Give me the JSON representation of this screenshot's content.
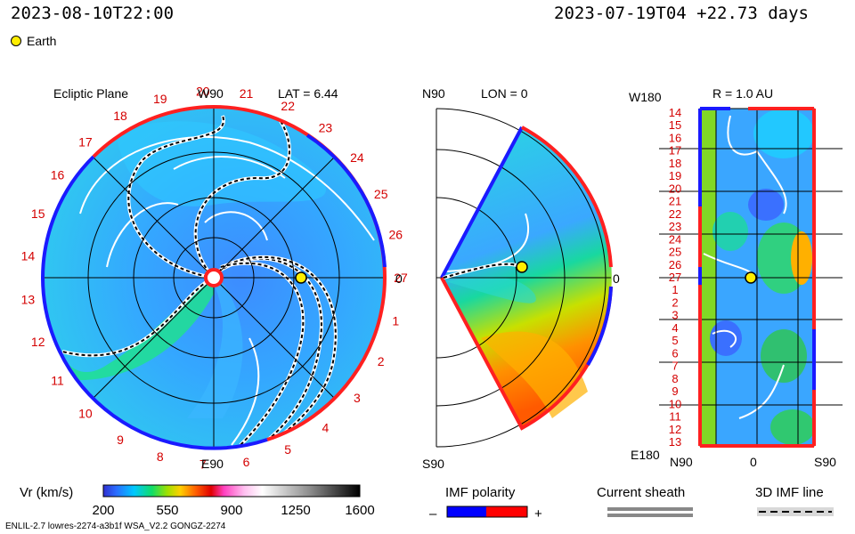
{
  "header": {
    "valid_time": "2023-08-10T22:00",
    "run_time": "2023-07-19T04 +22.73 days",
    "legend_label": "Earth",
    "legend_color": "#ffee00"
  },
  "panels": {
    "ecliptic": {
      "title": "Ecliptic Plane",
      "top_label": "W90",
      "lat_label": "LAT = 6.44",
      "bottom_label": "E90",
      "right_label": "0",
      "carrington_rotation_ticks": [
        "1",
        "2",
        "3",
        "4",
        "5",
        "6",
        "7",
        "8",
        "9",
        "10",
        "11",
        "12",
        "13",
        "14",
        "15",
        "16",
        "17",
        "18",
        "19",
        "20",
        "21",
        "22",
        "23",
        "24",
        "25",
        "26",
        "27"
      ]
    },
    "meridional": {
      "top_label": "N90",
      "lon_label": "LON = 0",
      "bottom_label": "S90",
      "right_label": "0"
    },
    "sphere": {
      "top_left_label": "W180",
      "r_label": "R = 1.0 AU",
      "bottom_left_label": "E180",
      "y_ticks": [
        "14",
        "15",
        "16",
        "17",
        "18",
        "19",
        "20",
        "21",
        "22",
        "23",
        "24",
        "25",
        "26",
        "27",
        "1",
        "2",
        "3",
        "4",
        "5",
        "6",
        "7",
        "8",
        "9",
        "10",
        "11",
        "12",
        "13"
      ],
      "x_labels": [
        "N90",
        "0",
        "S90"
      ]
    }
  },
  "colorbar": {
    "label": "Vr (km/s)",
    "ticks": [
      "200",
      "550",
      "900",
      "1250",
      "1600"
    ],
    "range": [
      200,
      1600
    ]
  },
  "legends": {
    "imf_polarity": {
      "title": "IMF polarity",
      "minus": "–",
      "plus": "+",
      "neg_color": "#0000ff",
      "pos_color": "#ff0000"
    },
    "current_sheath": {
      "title": "Current sheath"
    },
    "imf_line": {
      "title": "3D IMF line"
    }
  },
  "footer": {
    "model_id": "ENLIL-2.7 lowres-2274-a3b1f WSA_V2.2 GONGZ-2274"
  },
  "chart_data": {
    "type": "heatmap",
    "quantity": "Vr (km/s)",
    "value_range": [
      200,
      1600
    ],
    "earth_position": {
      "radius_au": 1.0,
      "lat_deg": 6.44,
      "lon_deg": 0
    },
    "domain_radius_au": 1.7,
    "polarity_colors": {
      "negative": "#0000ff",
      "positive": "#ff0000"
    }
  }
}
